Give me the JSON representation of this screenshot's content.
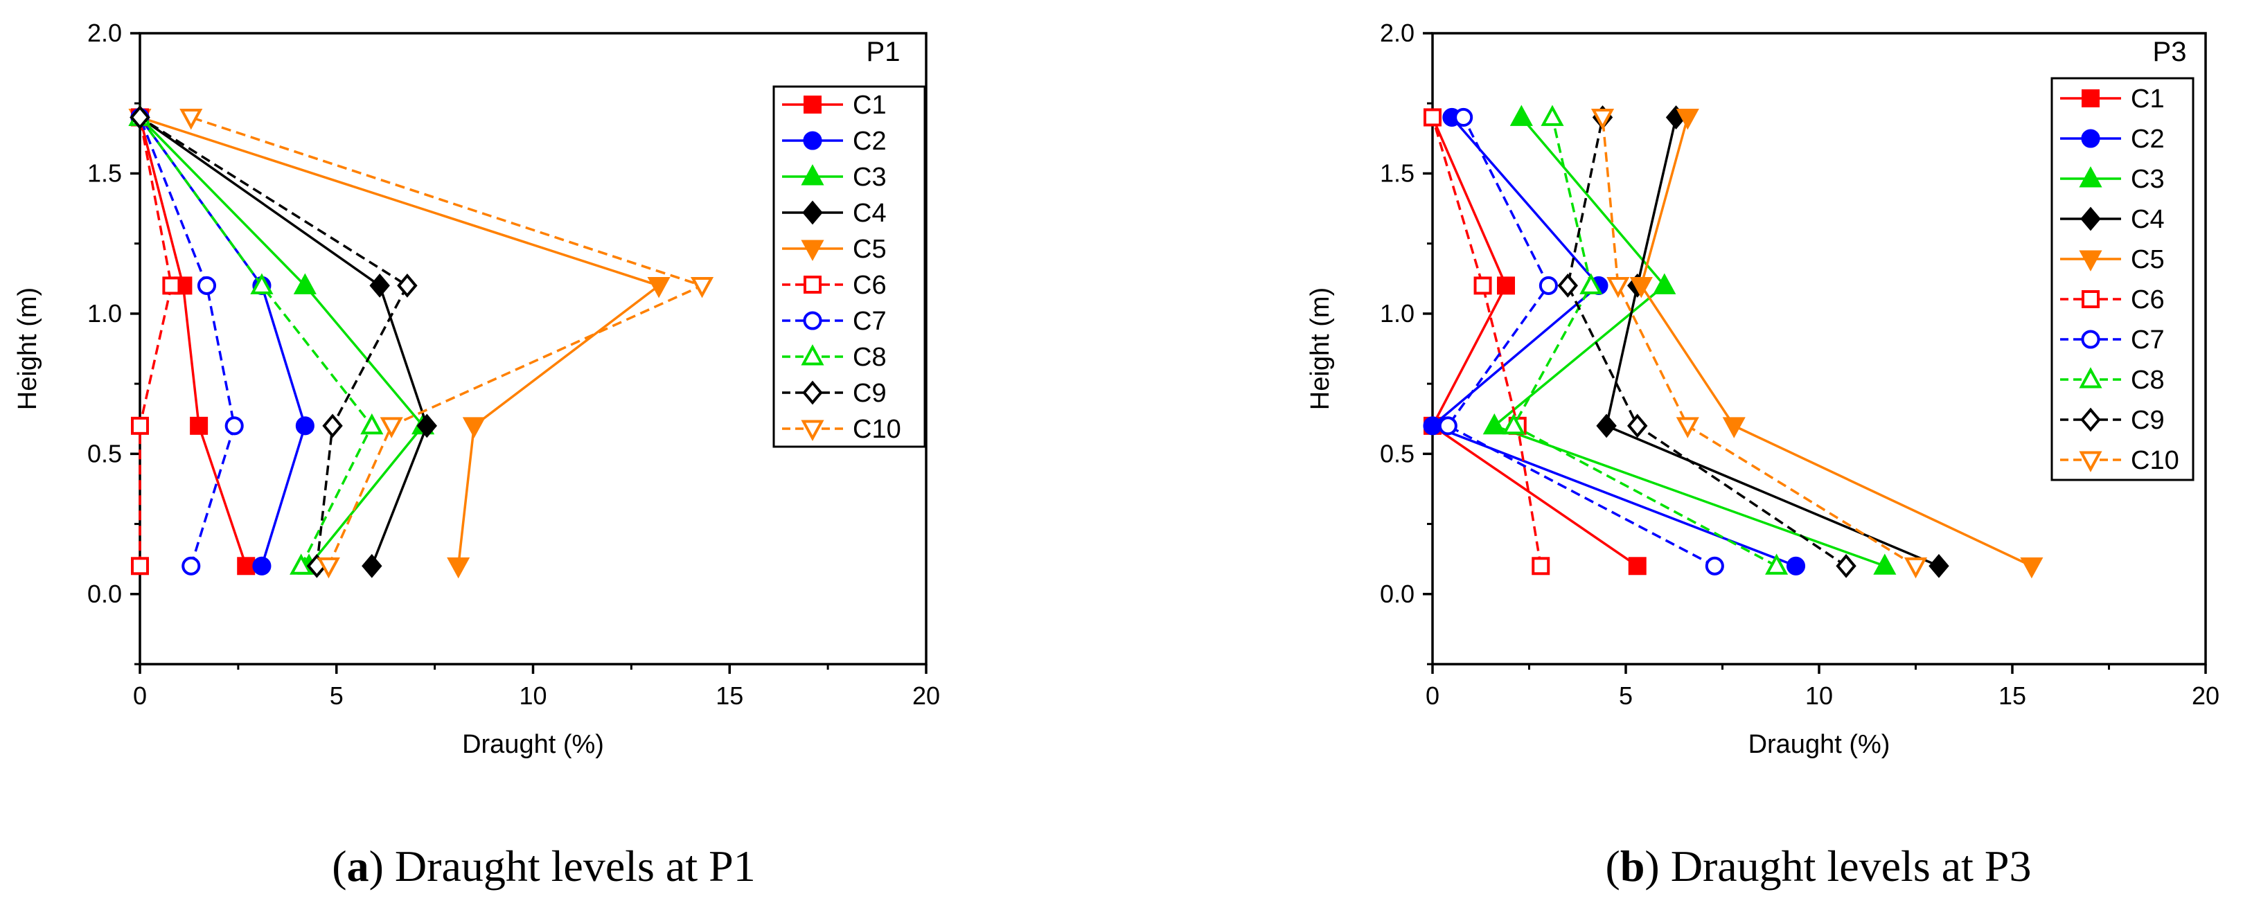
{
  "chart_data": [
    {
      "type": "line",
      "panel_label": "P1",
      "caption_letter": "a",
      "caption_text": "Draught levels at P1",
      "xlabel": "Draught (%)",
      "ylabel": "Height (m)",
      "xlim": [
        0,
        20
      ],
      "ylim": [
        -0.25,
        2.0
      ],
      "xticks": [
        0,
        5,
        10,
        15,
        20
      ],
      "yticks": [
        0.0,
        0.5,
        1.0,
        1.5,
        2.0
      ],
      "xtick_labels": [
        "0",
        "5",
        "10",
        "15",
        "20"
      ],
      "ytick_labels": [
        "0.0",
        "0.5",
        "1.0",
        "1.5",
        "2.0"
      ],
      "grid": false,
      "legend_position": "top-right",
      "y": [
        0.1,
        0.6,
        1.1,
        1.7
      ],
      "series": [
        {
          "name": "C1",
          "color": "#ff0000",
          "dash": "solid",
          "marker": "square",
          "filled": true,
          "x": [
            2.7,
            1.5,
            1.1,
            0.0
          ]
        },
        {
          "name": "C2",
          "color": "#0000ff",
          "dash": "solid",
          "marker": "circle",
          "filled": true,
          "x": [
            3.1,
            4.2,
            3.1,
            0.0
          ]
        },
        {
          "name": "C3",
          "color": "#00e000",
          "dash": "solid",
          "marker": "triangle-up",
          "filled": true,
          "x": [
            4.3,
            7.2,
            4.2,
            0.0
          ]
        },
        {
          "name": "C4",
          "color": "#000000",
          "dash": "solid",
          "marker": "diamond",
          "filled": true,
          "x": [
            5.9,
            7.3,
            6.1,
            0.0
          ]
        },
        {
          "name": "C5",
          "color": "#ff8000",
          "dash": "solid",
          "marker": "triangle-down",
          "filled": true,
          "x": [
            8.1,
            8.5,
            13.2,
            0.0
          ]
        },
        {
          "name": "C6",
          "color": "#ff0000",
          "dash": "dashed",
          "marker": "square",
          "filled": false,
          "x": [
            0.0,
            0.0,
            0.8,
            0.0
          ]
        },
        {
          "name": "C7",
          "color": "#0000ff",
          "dash": "dashed",
          "marker": "circle",
          "filled": false,
          "x": [
            1.3,
            2.4,
            1.7,
            0.0
          ]
        },
        {
          "name": "C8",
          "color": "#00e000",
          "dash": "dashed",
          "marker": "triangle-up",
          "filled": false,
          "x": [
            4.1,
            5.9,
            3.1,
            0.0
          ]
        },
        {
          "name": "C9",
          "color": "#000000",
          "dash": "dashed",
          "marker": "diamond",
          "filled": false,
          "x": [
            4.5,
            4.9,
            6.8,
            0.0
          ]
        },
        {
          "name": "C10",
          "color": "#ff8000",
          "dash": "dashed",
          "marker": "triangle-down",
          "filled": false,
          "x": [
            4.8,
            6.4,
            14.3,
            1.3
          ]
        }
      ]
    },
    {
      "type": "line",
      "panel_label": "P3",
      "caption_letter": "b",
      "caption_text": "Draught levels at P3",
      "xlabel": "Draught (%)",
      "ylabel": "Height (m)",
      "xlim": [
        0,
        20
      ],
      "ylim": [
        -0.25,
        2.0
      ],
      "xticks": [
        0,
        5,
        10,
        15,
        20
      ],
      "yticks": [
        0.0,
        0.5,
        1.0,
        1.5,
        2.0
      ],
      "xtick_labels": [
        "0",
        "5",
        "10",
        "15",
        "20"
      ],
      "ytick_labels": [
        "0.0",
        "0.5",
        "1.0",
        "1.5",
        "2.0"
      ],
      "grid": false,
      "legend_position": "top-right",
      "y": [
        0.1,
        0.6,
        1.1,
        1.7
      ],
      "series": [
        {
          "name": "C1",
          "color": "#ff0000",
          "dash": "solid",
          "marker": "square",
          "filled": true,
          "x": [
            5.3,
            0.0,
            1.9,
            0.0
          ]
        },
        {
          "name": "C2",
          "color": "#0000ff",
          "dash": "solid",
          "marker": "circle",
          "filled": true,
          "x": [
            9.4,
            0.0,
            4.3,
            0.5
          ]
        },
        {
          "name": "C3",
          "color": "#00e000",
          "dash": "solid",
          "marker": "triangle-up",
          "filled": true,
          "x": [
            11.7,
            1.6,
            6.0,
            2.3
          ]
        },
        {
          "name": "C4",
          "color": "#000000",
          "dash": "solid",
          "marker": "diamond",
          "filled": true,
          "x": [
            13.1,
            4.5,
            5.3,
            6.3
          ]
        },
        {
          "name": "C5",
          "color": "#ff8000",
          "dash": "solid",
          "marker": "triangle-down",
          "filled": true,
          "x": [
            15.5,
            7.8,
            5.4,
            6.6
          ]
        },
        {
          "name": "C6",
          "color": "#ff0000",
          "dash": "dashed",
          "marker": "square",
          "filled": false,
          "x": [
            2.8,
            2.2,
            1.3,
            0.0
          ]
        },
        {
          "name": "C7",
          "color": "#0000ff",
          "dash": "dashed",
          "marker": "circle",
          "filled": false,
          "x": [
            7.3,
            0.4,
            3.0,
            0.8
          ]
        },
        {
          "name": "C8",
          "color": "#00e000",
          "dash": "dashed",
          "marker": "triangle-up",
          "filled": false,
          "x": [
            8.9,
            2.1,
            4.1,
            3.1
          ]
        },
        {
          "name": "C9",
          "color": "#000000",
          "dash": "dashed",
          "marker": "diamond",
          "filled": false,
          "x": [
            10.7,
            5.3,
            3.5,
            4.4
          ]
        },
        {
          "name": "C10",
          "color": "#ff8000",
          "dash": "dashed",
          "marker": "triangle-down",
          "filled": false,
          "x": [
            12.5,
            6.6,
            4.8,
            4.4
          ]
        }
      ]
    }
  ]
}
